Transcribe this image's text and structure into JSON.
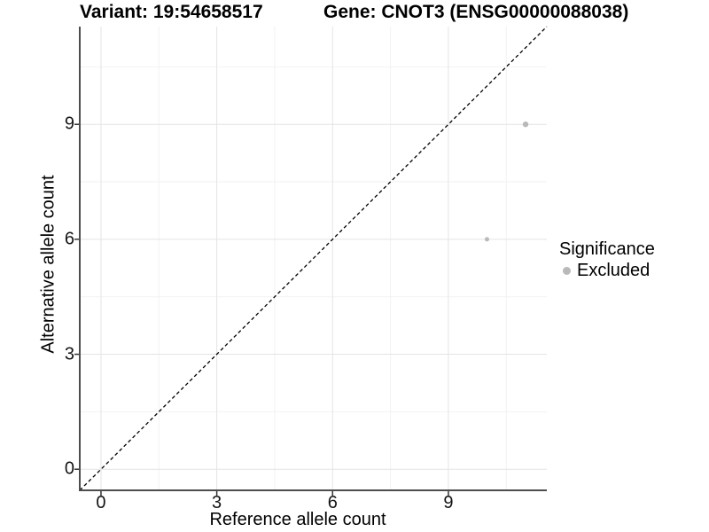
{
  "titles": {
    "variant": "Variant: 19:54658517",
    "gene": "Gene: CNOT3 (ENSG00000088038)"
  },
  "chart_data": {
    "type": "scatter",
    "xlabel": "Reference allele count",
    "ylabel": "Alternative allele count",
    "xlim": [
      -0.55,
      11.55
    ],
    "ylim": [
      -0.55,
      11.55
    ],
    "major_ticks": [
      0,
      3,
      6,
      9
    ],
    "tick_labels": [
      "0",
      "3",
      "6",
      "9"
    ],
    "minor_gridlines": [
      1.5,
      4.5,
      7.5,
      10.5
    ],
    "grid": "on",
    "points": [
      {
        "x": 11,
        "y": 9,
        "r": 3.2,
        "series": "Excluded"
      },
      {
        "x": 10,
        "y": 6,
        "r": 2.5,
        "series": "Excluded"
      }
    ],
    "identity_line": {
      "slope": 1,
      "intercept": 0,
      "style": "dashed",
      "color": "#000000"
    },
    "legend": {
      "title": "Significance",
      "position": "right",
      "items": [
        {
          "label": "Excluded",
          "color": "#b9b9b9"
        }
      ]
    }
  },
  "colors": {
    "background": "#ffffff",
    "grid_major": "#e4e4e4",
    "grid_minor": "#f2f2f2",
    "axis_line": "#4d4d4d",
    "tick": "#333333",
    "point": "#b9b9b9",
    "text": "#000000"
  }
}
